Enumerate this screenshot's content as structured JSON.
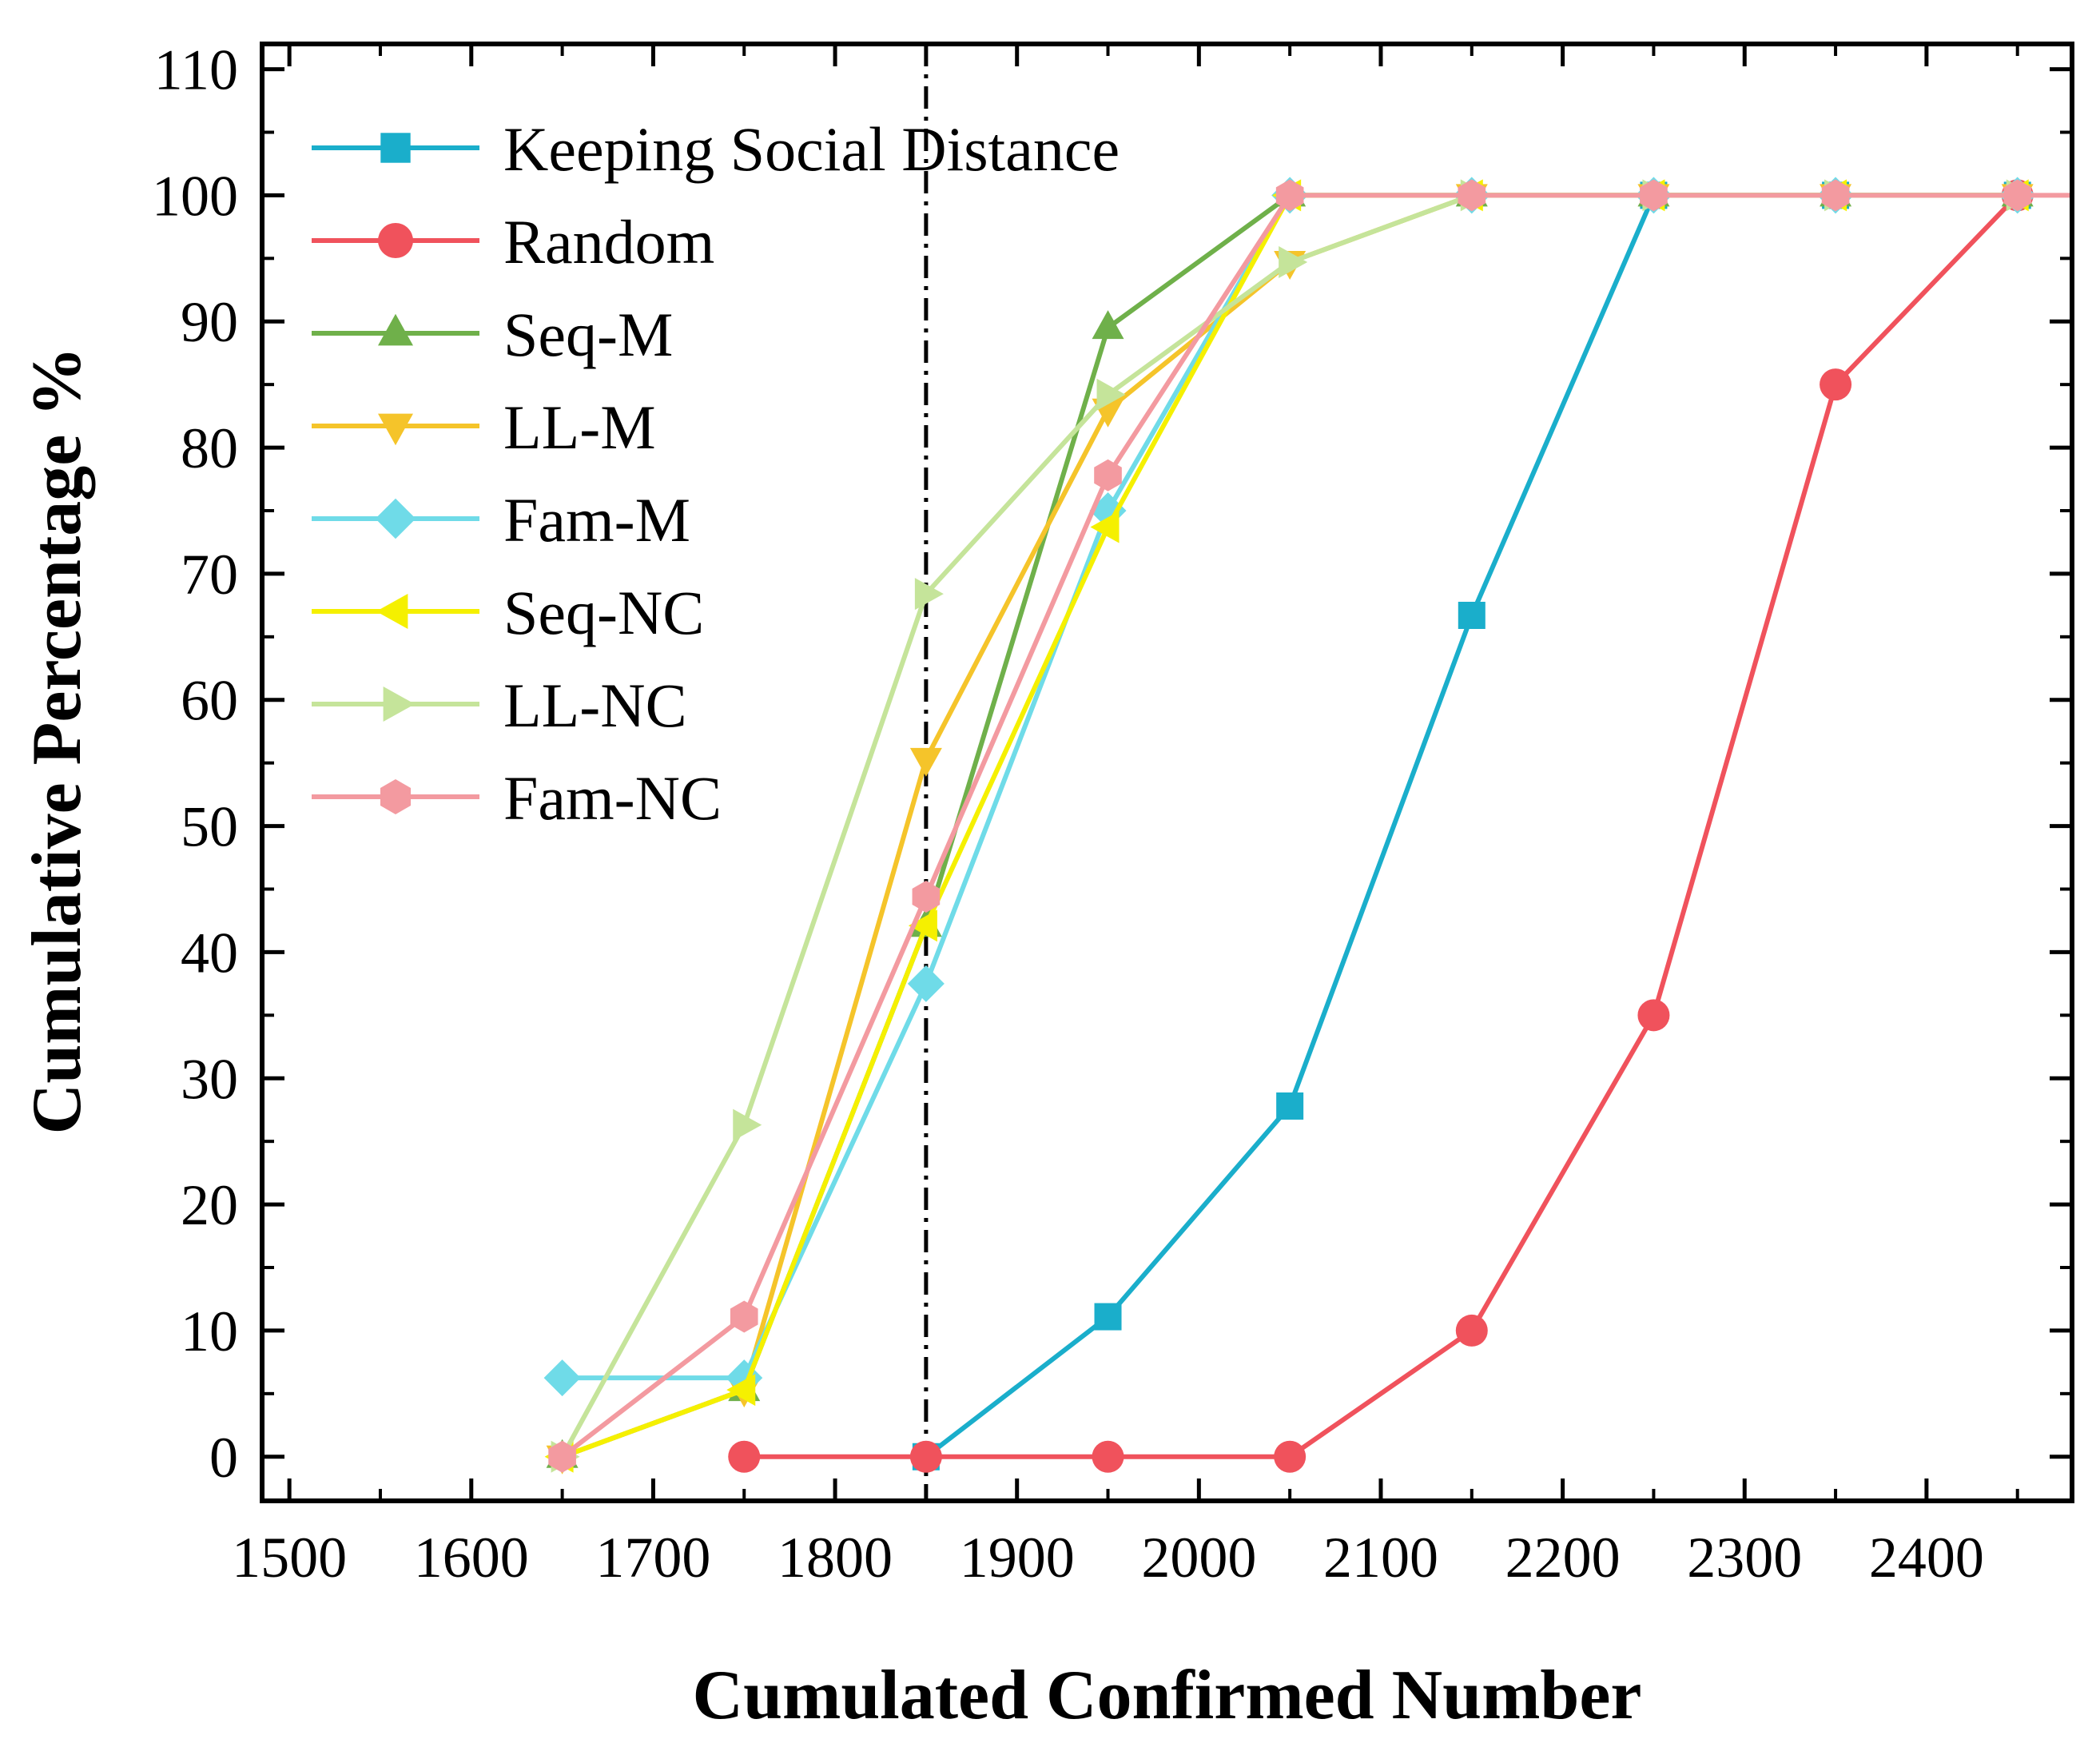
{
  "chart_data": {
    "type": "line",
    "title": "",
    "xlabel": "Cumulated Confirmed Number",
    "ylabel": "Cumulative Percentage %",
    "xlim": [
      1485,
      2480
    ],
    "ylim": [
      -3.5,
      112
    ],
    "xticks": [
      1500,
      1600,
      1700,
      1800,
      1900,
      2000,
      2100,
      2200,
      2300,
      2400
    ],
    "yticks": [
      0,
      10,
      20,
      30,
      40,
      50,
      60,
      70,
      80,
      90,
      100,
      110
    ],
    "x": [
      1650,
      1750,
      1850,
      1950,
      2050,
      2150,
      2250,
      2350,
      2450
    ],
    "reference_line_x": 1850,
    "legend_position": "top-left",
    "series": [
      {
        "name": "Keeping Social Distance",
        "marker": "square",
        "color": "#1aaecb",
        "values": [
          null,
          null,
          0,
          11.1,
          27.8,
          66.7,
          100,
          100,
          100
        ]
      },
      {
        "name": "Random",
        "marker": "circle",
        "color": "#f0525c",
        "values": [
          null,
          0,
          0,
          0,
          0,
          10,
          35,
          85,
          100
        ]
      },
      {
        "name": "Seq-M",
        "marker": "triangle-up",
        "color": "#6fb04a",
        "values": [
          0,
          5.3,
          42.1,
          89.5,
          100,
          100,
          100,
          100,
          100
        ]
      },
      {
        "name": "LL-M",
        "marker": "triangle-down",
        "color": "#f5c42a",
        "values": [
          0,
          5.3,
          55.3,
          83,
          94.7,
          100,
          100,
          100,
          100
        ]
      },
      {
        "name": "Fam-M",
        "marker": "diamond",
        "color": "#6fdbe8",
        "values": [
          6.25,
          6.25,
          37.5,
          75,
          100,
          100,
          100,
          100,
          100
        ]
      },
      {
        "name": "Seq-NC",
        "marker": "triangle-left",
        "color": "#f5f000",
        "values": [
          0,
          5.3,
          42.1,
          73.7,
          100,
          100,
          100,
          100,
          100
        ]
      },
      {
        "name": "LL-NC",
        "marker": "triangle-right",
        "color": "#c5e49a",
        "values": [
          0,
          26.3,
          68.4,
          84.2,
          94.7,
          100,
          100,
          100,
          100
        ]
      },
      {
        "name": "Fam-NC",
        "marker": "hexagon",
        "color": "#f39aa0",
        "values": [
          0,
          11.1,
          44.4,
          77.8,
          100,
          100,
          100,
          100,
          100
        ]
      }
    ]
  }
}
